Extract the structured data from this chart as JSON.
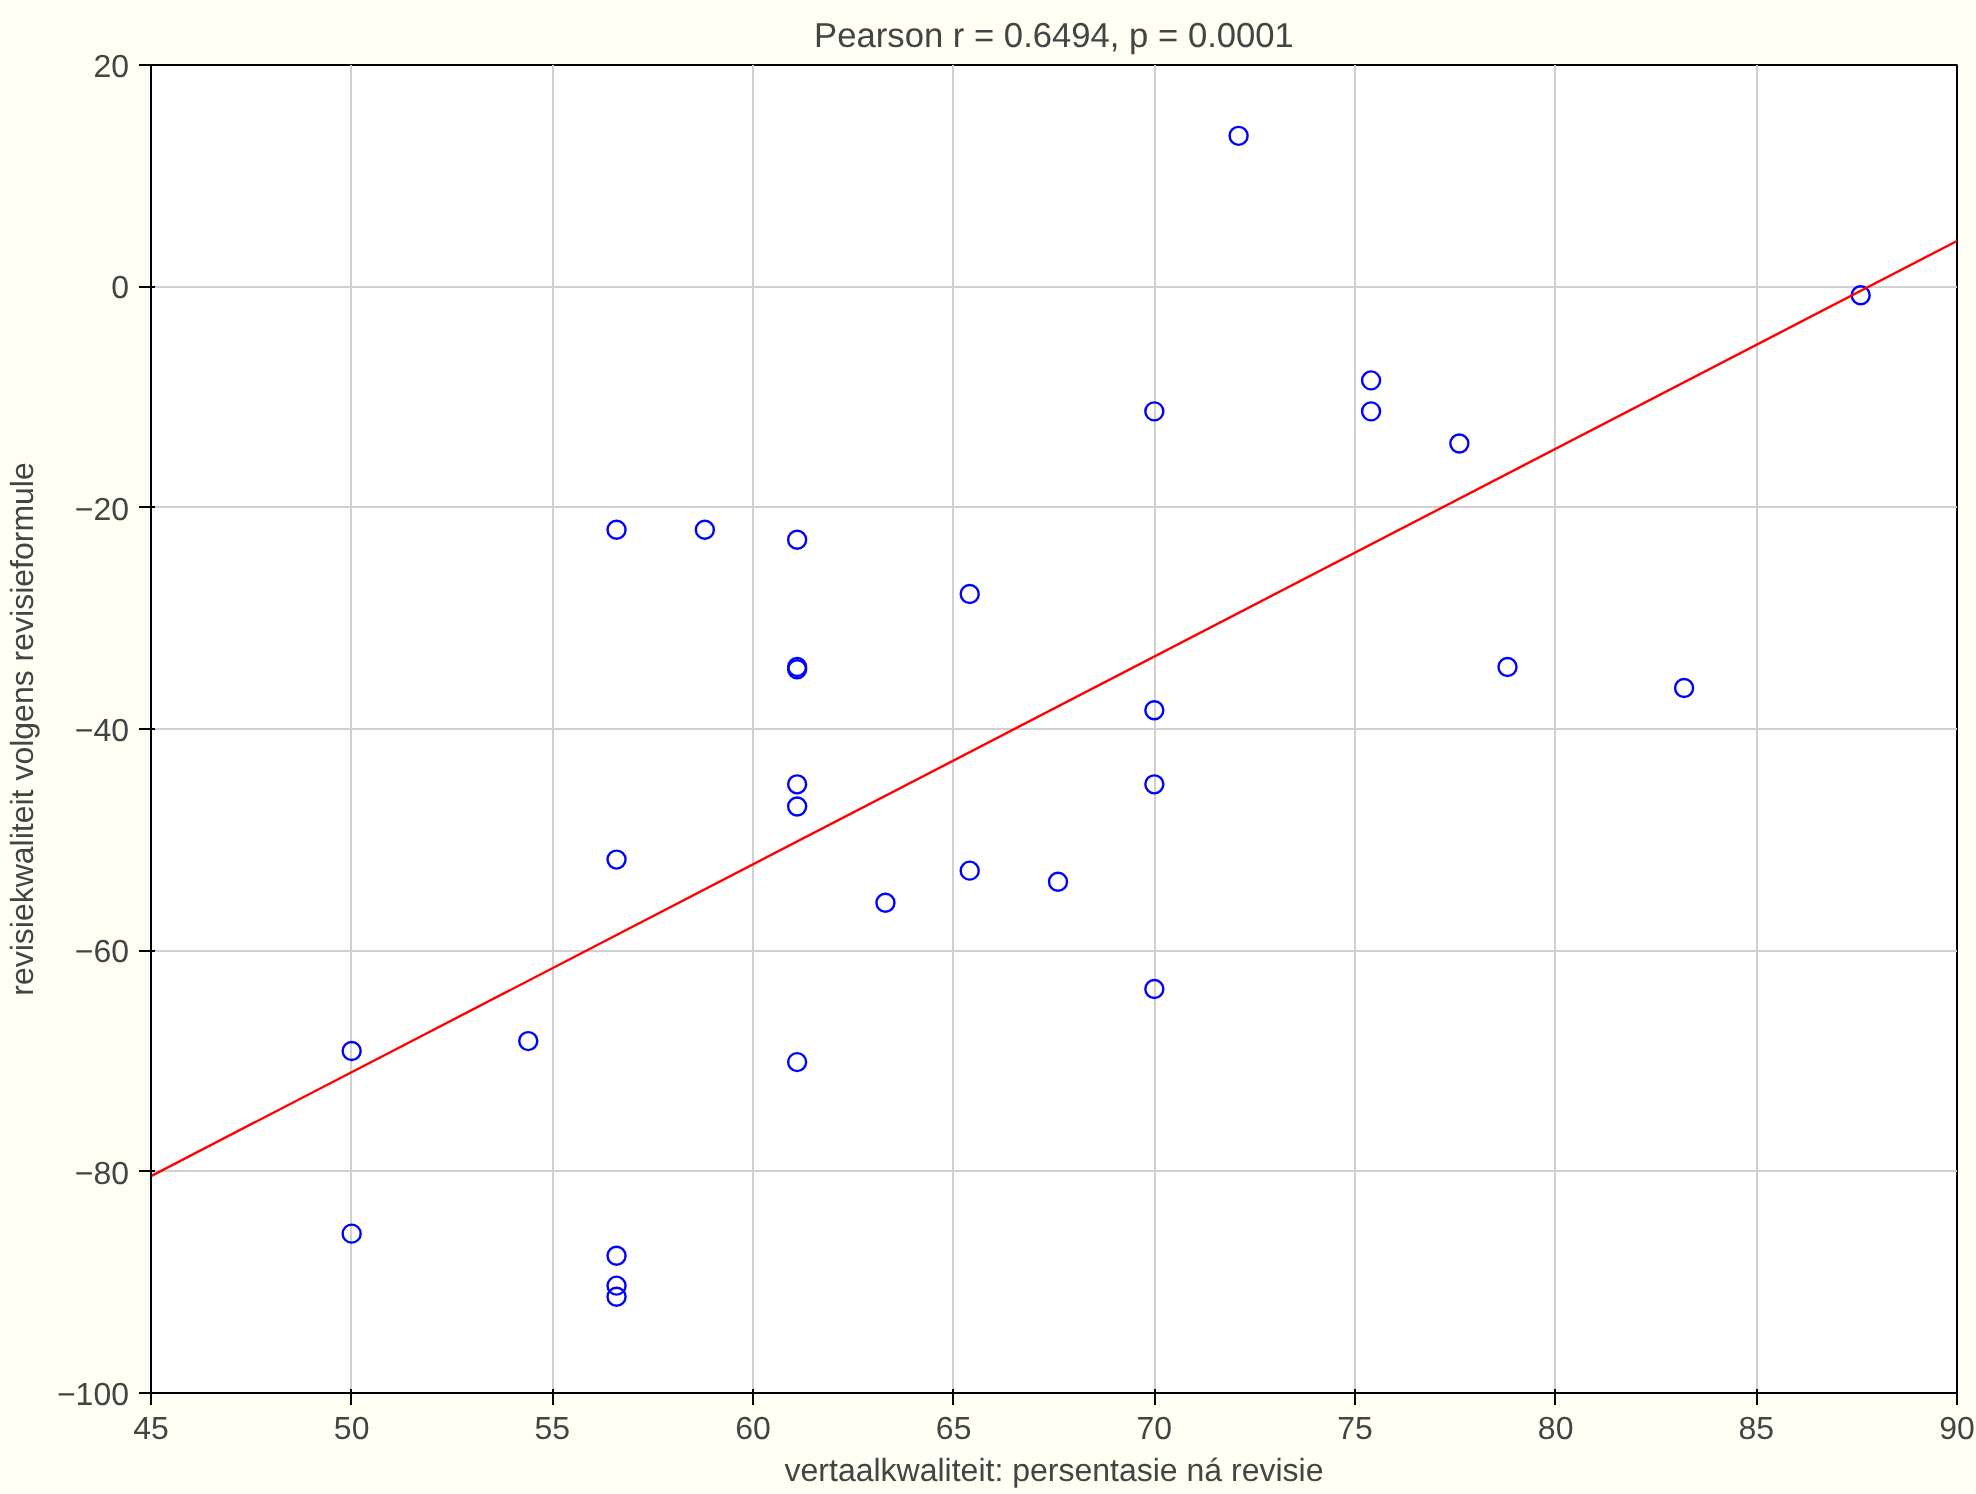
{
  "chart_data": {
    "type": "scatter",
    "title": "Pearson r = 0.6494, p = 0.0001",
    "xlabel": "vertaalkwaliteit: persentasie ná revisie",
    "ylabel": "revisiekwaliteit volgens revisieformule",
    "xlim": [
      45,
      90
    ],
    "ylim": [
      -100,
      20
    ],
    "xticks": [
      45,
      50,
      55,
      60,
      65,
      70,
      75,
      80,
      85,
      90
    ],
    "yticks": [
      -100,
      -80,
      -60,
      -40,
      -20,
      0,
      20
    ],
    "grid": true,
    "series": [
      {
        "marker": "circle",
        "color": "#0000ff",
        "x": [
          72.1,
          87.6,
          75.4,
          75.4,
          70.0,
          77.6,
          56.6,
          58.8,
          61.1,
          65.4,
          61.1,
          61.1,
          78.8,
          83.2,
          70.0,
          61.1,
          70.0,
          61.1,
          56.6,
          65.4,
          67.6,
          63.3,
          70.0,
          54.4,
          50.0,
          61.1,
          50.0,
          56.6,
          56.6,
          56.6
        ],
        "values": [
          13.6,
          -0.8,
          -8.5,
          -11.3,
          -11.3,
          -14.2,
          -22,
          -22,
          -22.9,
          -27.8,
          -34.4,
          -34.6,
          -34.4,
          -36.3,
          -38.3,
          -45.0,
          -45.0,
          -47.0,
          -51.8,
          -52.8,
          -53.8,
          -55.7,
          -63.5,
          -68.2,
          -69.1,
          -70.1,
          -85.6,
          -87.6,
          -90.3,
          -91.3
        ]
      },
      {
        "type": "line",
        "color": "#ff0000",
        "x": [
          45,
          90
        ],
        "values": [
          -80.4,
          4.1
        ]
      }
    ]
  }
}
